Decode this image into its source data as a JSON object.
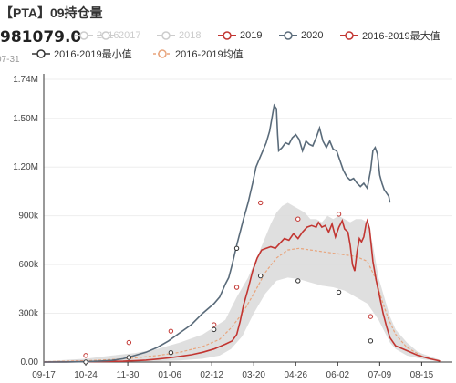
{
  "title": "【PTA】09持仓量",
  "readout": {
    "value": "981079.0",
    "date_fragment": "07-31"
  },
  "colors": {
    "s2016": "#c8c8c8",
    "s2017": "#c8c8c8",
    "s2018": "#c8c8c8",
    "s2019": "#c23531",
    "s2020": "#5a6b7a",
    "range_fill": "#d9d9d9",
    "max_marker": "#c23531",
    "min_marker": "#333333",
    "avg": "#e8a47c"
  },
  "legend": [
    {
      "key": "s2016",
      "label": "2016",
      "style": "dim"
    },
    {
      "key": "s2017",
      "label": "2017",
      "style": "dim"
    },
    {
      "key": "s2018",
      "label": "2018",
      "style": "dim"
    },
    {
      "key": "s2019",
      "label": "2019",
      "style": "line"
    },
    {
      "key": "s2020",
      "label": "2020",
      "style": "line"
    },
    {
      "key": "max",
      "label": "2016-2019最大值",
      "style": "line"
    },
    {
      "key": "min",
      "label": "2016-2019最小值",
      "style": "line"
    },
    {
      "key": "avg",
      "label": "2016-2019均值",
      "style": "dashed"
    }
  ],
  "chart_data": {
    "type": "line",
    "title": "【PTA】09持仓量",
    "x_ticks": [
      "09-17",
      "10-24",
      "11-30",
      "01-06",
      "02-12",
      "03-20",
      "04-26",
      "06-02",
      "07-09",
      "08-15"
    ],
    "y_ticks": [
      "0.00",
      "300k",
      "600k",
      "900k",
      "1.20M",
      "1.50M",
      "1.74M"
    ],
    "y_tick_values": [
      0,
      300000,
      600000,
      900000,
      1200000,
      1500000,
      1740000
    ],
    "ylim": [
      0,
      1740000
    ],
    "grid": "horizontal",
    "series": [
      {
        "name": "2020",
        "points": [
          [
            0,
            0
          ],
          [
            20,
            500
          ],
          [
            37,
            2000
          ],
          [
            50,
            6000
          ],
          [
            60,
            10000
          ],
          [
            70,
            20000
          ],
          [
            80,
            40000
          ],
          [
            90,
            60000
          ],
          [
            100,
            90000
          ],
          [
            110,
            130000
          ],
          [
            120,
            180000
          ],
          [
            130,
            230000
          ],
          [
            140,
            300000
          ],
          [
            150,
            360000
          ],
          [
            155,
            400000
          ],
          [
            160,
            480000
          ],
          [
            163,
            520000
          ],
          [
            166,
            600000
          ],
          [
            170,
            720000
          ],
          [
            173,
            800000
          ],
          [
            176,
            880000
          ],
          [
            180,
            980000
          ],
          [
            184,
            1100000
          ],
          [
            187,
            1200000
          ],
          [
            190,
            1250000
          ],
          [
            193,
            1300000
          ],
          [
            196,
            1350000
          ],
          [
            199,
            1420000
          ],
          [
            201,
            1500000
          ],
          [
            203,
            1580000
          ],
          [
            205,
            1560000
          ],
          [
            206,
            1400000
          ],
          [
            207,
            1300000
          ],
          [
            210,
            1320000
          ],
          [
            213,
            1350000
          ],
          [
            216,
            1340000
          ],
          [
            219,
            1380000
          ],
          [
            222,
            1400000
          ],
          [
            225,
            1370000
          ],
          [
            228,
            1300000
          ],
          [
            231,
            1360000
          ],
          [
            234,
            1340000
          ],
          [
            237,
            1330000
          ],
          [
            240,
            1380000
          ],
          [
            243,
            1440000
          ],
          [
            246,
            1360000
          ],
          [
            249,
            1320000
          ],
          [
            252,
            1360000
          ],
          [
            255,
            1310000
          ],
          [
            258,
            1300000
          ],
          [
            261,
            1240000
          ],
          [
            264,
            1180000
          ],
          [
            267,
            1140000
          ],
          [
            270,
            1120000
          ],
          [
            273,
            1130000
          ],
          [
            276,
            1100000
          ],
          [
            279,
            1080000
          ],
          [
            282,
            1100000
          ],
          [
            285,
            1070000
          ],
          [
            288,
            1180000
          ],
          [
            290,
            1300000
          ],
          [
            292,
            1320000
          ],
          [
            294,
            1280000
          ],
          [
            296,
            1150000
          ],
          [
            298,
            1100000
          ],
          [
            300,
            1060000
          ],
          [
            302,
            1040000
          ],
          [
            304,
            1020000
          ],
          [
            305,
            981079
          ]
        ]
      },
      {
        "name": "2019",
        "points": [
          [
            0,
            0
          ],
          [
            20,
            1000
          ],
          [
            37,
            2000
          ],
          [
            50,
            3000
          ],
          [
            60,
            4000
          ],
          [
            70,
            5000
          ],
          [
            80,
            8000
          ],
          [
            90,
            12000
          ],
          [
            100,
            18000
          ],
          [
            110,
            25000
          ],
          [
            120,
            35000
          ],
          [
            130,
            45000
          ],
          [
            140,
            60000
          ],
          [
            150,
            80000
          ],
          [
            160,
            110000
          ],
          [
            166,
            130000
          ],
          [
            170,
            170000
          ],
          [
            173,
            250000
          ],
          [
            176,
            350000
          ],
          [
            180,
            450000
          ],
          [
            184,
            560000
          ],
          [
            188,
            640000
          ],
          [
            192,
            690000
          ],
          [
            196,
            700000
          ],
          [
            200,
            710000
          ],
          [
            204,
            700000
          ],
          [
            208,
            730000
          ],
          [
            212,
            760000
          ],
          [
            216,
            750000
          ],
          [
            220,
            790000
          ],
          [
            224,
            760000
          ],
          [
            228,
            800000
          ],
          [
            232,
            830000
          ],
          [
            236,
            840000
          ],
          [
            240,
            830000
          ],
          [
            242,
            860000
          ],
          [
            245,
            830000
          ],
          [
            248,
            840000
          ],
          [
            251,
            800000
          ],
          [
            254,
            850000
          ],
          [
            257,
            770000
          ],
          [
            260,
            830000
          ],
          [
            263,
            870000
          ],
          [
            265,
            820000
          ],
          [
            268,
            800000
          ],
          [
            270,
            720000
          ],
          [
            272,
            600000
          ],
          [
            274,
            560000
          ],
          [
            276,
            680000
          ],
          [
            278,
            760000
          ],
          [
            280,
            740000
          ],
          [
            282,
            770000
          ],
          [
            284,
            850000
          ],
          [
            285,
            870000
          ],
          [
            287,
            820000
          ],
          [
            290,
            620000
          ],
          [
            293,
            500000
          ],
          [
            296,
            400000
          ],
          [
            299,
            300000
          ],
          [
            302,
            220000
          ],
          [
            305,
            150000
          ],
          [
            310,
            100000
          ],
          [
            320,
            70000
          ],
          [
            330,
            40000
          ],
          [
            340,
            20000
          ],
          [
            350,
            5000
          ]
        ]
      },
      {
        "name": "2016-2019最大值",
        "points": [
          [
            0,
            5000
          ],
          [
            37,
            20000
          ],
          [
            60,
            40000
          ],
          [
            80,
            55000
          ],
          [
            100,
            80000
          ],
          [
            120,
            120000
          ],
          [
            140,
            170000
          ],
          [
            160,
            260000
          ],
          [
            170,
            400000
          ],
          [
            180,
            520000
          ],
          [
            190,
            680000
          ],
          [
            200,
            850000
          ],
          [
            205,
            920000
          ],
          [
            210,
            960000
          ],
          [
            215,
            980000
          ],
          [
            220,
            960000
          ],
          [
            225,
            940000
          ],
          [
            230,
            920000
          ],
          [
            235,
            880000
          ],
          [
            240,
            880000
          ],
          [
            245,
            860000
          ],
          [
            250,
            900000
          ],
          [
            255,
            880000
          ],
          [
            260,
            900000
          ],
          [
            265,
            880000
          ],
          [
            270,
            860000
          ],
          [
            275,
            880000
          ],
          [
            280,
            880000
          ],
          [
            285,
            860000
          ],
          [
            290,
            720000
          ],
          [
            295,
            520000
          ],
          [
            300,
            400000
          ],
          [
            305,
            280000
          ],
          [
            310,
            200000
          ],
          [
            320,
            120000
          ],
          [
            330,
            60000
          ],
          [
            350,
            10000
          ]
        ]
      },
      {
        "name": "2016-2019最小值",
        "points": [
          [
            0,
            0
          ],
          [
            37,
            500
          ],
          [
            60,
            1000
          ],
          [
            80,
            2000
          ],
          [
            100,
            5000
          ],
          [
            120,
            10000
          ],
          [
            140,
            20000
          ],
          [
            155,
            40000
          ],
          [
            165,
            80000
          ],
          [
            175,
            160000
          ],
          [
            185,
            300000
          ],
          [
            195,
            420000
          ],
          [
            205,
            500000
          ],
          [
            215,
            520000
          ],
          [
            225,
            510000
          ],
          [
            235,
            490000
          ],
          [
            245,
            470000
          ],
          [
            255,
            460000
          ],
          [
            265,
            440000
          ],
          [
            275,
            400000
          ],
          [
            285,
            360000
          ],
          [
            295,
            260000
          ],
          [
            300,
            190000
          ],
          [
            305,
            120000
          ],
          [
            310,
            80000
          ],
          [
            320,
            40000
          ],
          [
            335,
            15000
          ],
          [
            350,
            2000
          ]
        ]
      },
      {
        "name": "2016-2019均值",
        "points": [
          [
            0,
            2000
          ],
          [
            37,
            8000
          ],
          [
            60,
            15000
          ],
          [
            80,
            25000
          ],
          [
            100,
            40000
          ],
          [
            120,
            60000
          ],
          [
            140,
            95000
          ],
          [
            155,
            140000
          ],
          [
            165,
            210000
          ],
          [
            175,
            300000
          ],
          [
            185,
            420000
          ],
          [
            195,
            550000
          ],
          [
            205,
            640000
          ],
          [
            215,
            690000
          ],
          [
            225,
            700000
          ],
          [
            235,
            690000
          ],
          [
            245,
            680000
          ],
          [
            255,
            670000
          ],
          [
            265,
            660000
          ],
          [
            275,
            650000
          ],
          [
            285,
            620000
          ],
          [
            292,
            520000
          ],
          [
            298,
            380000
          ],
          [
            304,
            260000
          ],
          [
            310,
            170000
          ],
          [
            320,
            90000
          ],
          [
            335,
            30000
          ],
          [
            350,
            5000
          ]
        ]
      }
    ],
    "max_markers": [
      [
        37,
        40000
      ],
      [
        75,
        120000
      ],
      [
        112,
        190000
      ],
      [
        150,
        230000
      ],
      [
        170,
        460000
      ],
      [
        191,
        980000
      ],
      [
        224,
        880000
      ],
      [
        260,
        910000
      ],
      [
        288,
        280000
      ]
    ],
    "min_markers": [
      [
        37,
        0
      ],
      [
        75,
        28000
      ],
      [
        112,
        58000
      ],
      [
        150,
        200000
      ],
      [
        170,
        700000
      ],
      [
        191,
        530000
      ],
      [
        224,
        500000
      ],
      [
        260,
        430000
      ],
      [
        288,
        130000
      ]
    ]
  }
}
